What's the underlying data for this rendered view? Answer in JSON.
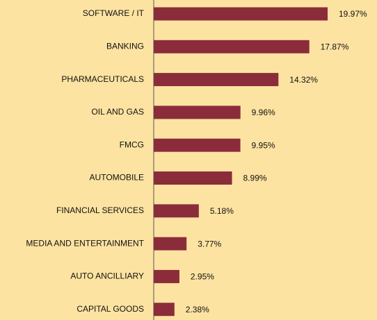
{
  "chart_data": {
    "type": "bar",
    "orientation": "horizontal",
    "color": "#8b2c3b",
    "categories": [
      "SOFTWARE / IT",
      "BANKING",
      "PHARMACEUTICALS",
      "OIL AND GAS",
      "FMCG",
      "AUTOMOBILE",
      "FINANCIAL SERVICES",
      "MEDIA AND ENTERTAINMENT",
      "AUTO ANCILLIARY",
      "CAPITAL GOODS"
    ],
    "values": [
      19.97,
      17.87,
      14.32,
      9.96,
      9.95,
      8.99,
      5.18,
      3.77,
      2.95,
      2.38
    ],
    "value_labels": [
      "19.97%",
      "17.87%",
      "14.32%",
      "9.96%",
      "9.95%",
      "8.99%",
      "5.18%",
      "3.77%",
      "2.95%",
      "2.38%"
    ]
  }
}
